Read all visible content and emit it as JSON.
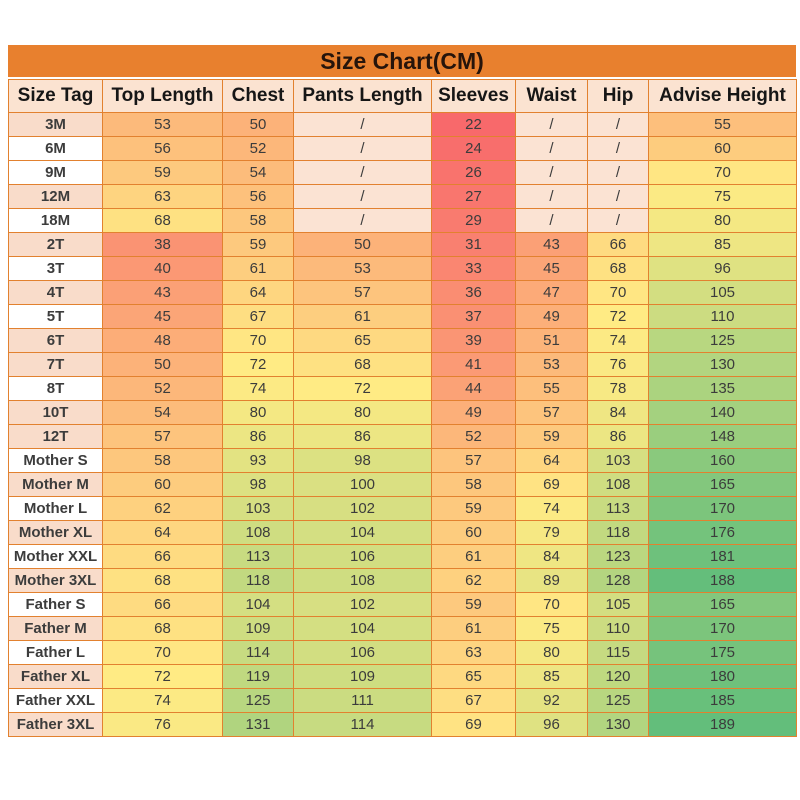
{
  "colors": {
    "page_bg": "#FFFFFF",
    "title_bg": "#E8802E",
    "title_text": "#26140B",
    "header_bg": "#FBE3D1",
    "header_text": "#161616",
    "tag_shaded_bg": "#F9DCCA",
    "tag_plain_bg": "#FFFFFF",
    "tag_text": "#161616",
    "na_bg": "#FBE3D3",
    "value_text": "#3C3C3C",
    "border": "#E2812F"
  },
  "chart_data": {
    "type": "table",
    "title": "Size Chart(CM)",
    "columns": [
      "Size Tag",
      "Top Length",
      "Chest",
      "Pants Length",
      "Sleeves",
      "Waist",
      "Hip",
      "Advise Height"
    ],
    "na_symbol": "/",
    "rows": [
      {
        "tag": "3M",
        "tag_shaded": true,
        "values": [
          53,
          50,
          "/",
          22,
          "/",
          "/",
          55
        ]
      },
      {
        "tag": "6M",
        "tag_shaded": false,
        "values": [
          56,
          52,
          "/",
          24,
          "/",
          "/",
          60
        ]
      },
      {
        "tag": "9M",
        "tag_shaded": false,
        "values": [
          59,
          54,
          "/",
          26,
          "/",
          "/",
          70
        ]
      },
      {
        "tag": "12M",
        "tag_shaded": true,
        "values": [
          63,
          56,
          "/",
          27,
          "/",
          "/",
          75
        ]
      },
      {
        "tag": "18M",
        "tag_shaded": false,
        "values": [
          68,
          58,
          "/",
          29,
          "/",
          "/",
          80
        ]
      },
      {
        "tag": "2T",
        "tag_shaded": true,
        "values": [
          38,
          59,
          50,
          31,
          43,
          66,
          85
        ]
      },
      {
        "tag": "3T",
        "tag_shaded": false,
        "values": [
          40,
          61,
          53,
          33,
          45,
          68,
          96
        ]
      },
      {
        "tag": "4T",
        "tag_shaded": true,
        "values": [
          43,
          64,
          57,
          36,
          47,
          70,
          105
        ]
      },
      {
        "tag": "5T",
        "tag_shaded": false,
        "values": [
          45,
          67,
          61,
          37,
          49,
          72,
          110
        ]
      },
      {
        "tag": "6T",
        "tag_shaded": true,
        "values": [
          48,
          70,
          65,
          39,
          51,
          74,
          125
        ]
      },
      {
        "tag": "7T",
        "tag_shaded": true,
        "values": [
          50,
          72,
          68,
          41,
          53,
          76,
          130
        ]
      },
      {
        "tag": "8T",
        "tag_shaded": false,
        "values": [
          52,
          74,
          72,
          44,
          55,
          78,
          135
        ]
      },
      {
        "tag": "10T",
        "tag_shaded": true,
        "values": [
          54,
          80,
          80,
          49,
          57,
          84,
          140
        ]
      },
      {
        "tag": "12T",
        "tag_shaded": true,
        "values": [
          57,
          86,
          86,
          52,
          59,
          86,
          148
        ]
      },
      {
        "tag": "Mother S",
        "tag_shaded": false,
        "values": [
          58,
          93,
          98,
          57,
          64,
          103,
          160
        ]
      },
      {
        "tag": "Mother M",
        "tag_shaded": true,
        "values": [
          60,
          98,
          100,
          58,
          69,
          108,
          165
        ]
      },
      {
        "tag": "Mother L",
        "tag_shaded": false,
        "values": [
          62,
          103,
          102,
          59,
          74,
          113,
          170
        ]
      },
      {
        "tag": "Mother XL",
        "tag_shaded": true,
        "values": [
          64,
          108,
          104,
          60,
          79,
          118,
          176
        ]
      },
      {
        "tag": "Mother XXL",
        "tag_shaded": false,
        "values": [
          66,
          113,
          106,
          61,
          84,
          123,
          181
        ]
      },
      {
        "tag": "Mother 3XL",
        "tag_shaded": true,
        "values": [
          68,
          118,
          108,
          62,
          89,
          128,
          188
        ]
      },
      {
        "tag": "Father S",
        "tag_shaded": false,
        "values": [
          66,
          104,
          102,
          59,
          70,
          105,
          165
        ]
      },
      {
        "tag": "Father M",
        "tag_shaded": true,
        "values": [
          68,
          109,
          104,
          61,
          75,
          110,
          170
        ]
      },
      {
        "tag": "Father L",
        "tag_shaded": false,
        "values": [
          70,
          114,
          106,
          63,
          80,
          115,
          175
        ]
      },
      {
        "tag": "Father XL",
        "tag_shaded": true,
        "values": [
          72,
          119,
          109,
          65,
          85,
          120,
          180
        ]
      },
      {
        "tag": "Father XXL",
        "tag_shaded": false,
        "values": [
          74,
          125,
          111,
          67,
          92,
          125,
          185
        ]
      },
      {
        "tag": "Father 3XL",
        "tag_shaded": true,
        "values": [
          76,
          131,
          114,
          69,
          96,
          130,
          189
        ]
      }
    ],
    "heatmap": {
      "scope": "all numeric cells",
      "min_value": 22,
      "mid_value": 72,
      "max_value": 189,
      "midpoint_rule": "median",
      "min_color": "#F8696B",
      "mid_color": "#FFEB84",
      "max_color": "#63BE7B"
    },
    "legend_position": "none",
    "grid": true
  }
}
